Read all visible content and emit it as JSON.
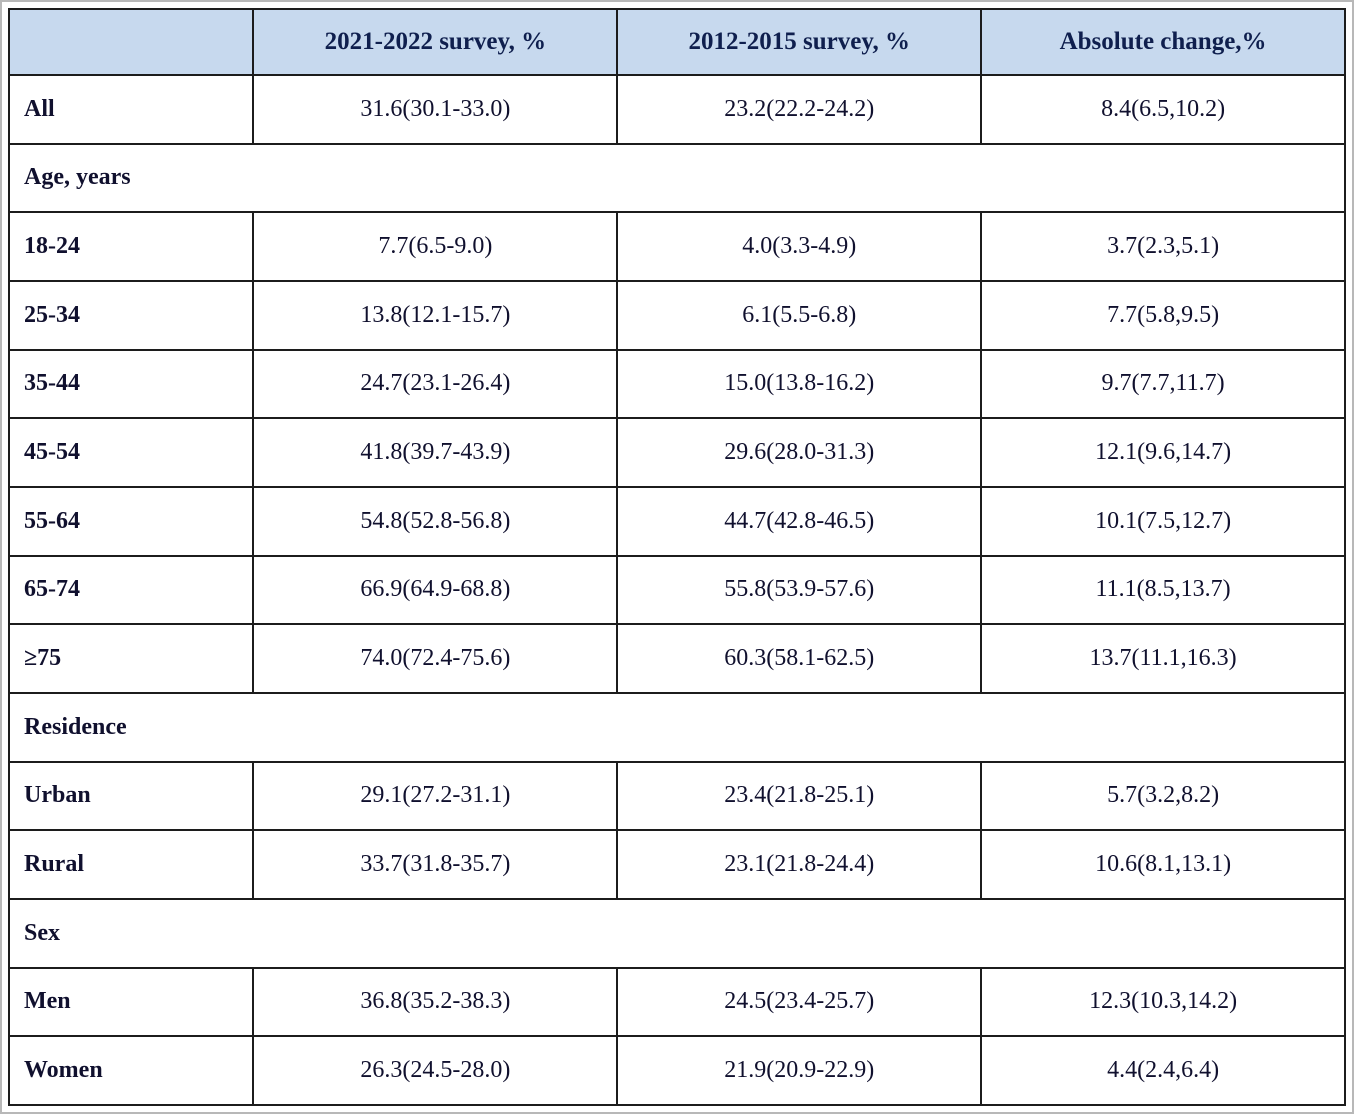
{
  "table": {
    "columns": [
      "",
      "2021-2022 survey, %",
      "2012-2015 survey, %",
      "Absolute change,%"
    ],
    "rows": [
      {
        "type": "data",
        "label": "All",
        "values": [
          "31.6(30.1-33.0)",
          "23.2(22.2-24.2)",
          "8.4(6.5,10.2)"
        ]
      },
      {
        "type": "section",
        "label": "Age, years"
      },
      {
        "type": "data",
        "label": "18-24",
        "values": [
          "7.7(6.5-9.0)",
          "4.0(3.3-4.9)",
          "3.7(2.3,5.1)"
        ]
      },
      {
        "type": "data",
        "label": "25-34",
        "values": [
          "13.8(12.1-15.7)",
          "6.1(5.5-6.8)",
          "7.7(5.8,9.5)"
        ]
      },
      {
        "type": "data",
        "label": "35-44",
        "values": [
          "24.7(23.1-26.4)",
          "15.0(13.8-16.2)",
          "9.7(7.7,11.7)"
        ]
      },
      {
        "type": "data",
        "label": "45-54",
        "values": [
          "41.8(39.7-43.9)",
          "29.6(28.0-31.3)",
          "12.1(9.6,14.7)"
        ]
      },
      {
        "type": "data",
        "label": "55-64",
        "values": [
          "54.8(52.8-56.8)",
          "44.7(42.8-46.5)",
          "10.1(7.5,12.7)"
        ]
      },
      {
        "type": "data",
        "label": "65-74",
        "values": [
          "66.9(64.9-68.8)",
          "55.8(53.9-57.6)",
          "11.1(8.5,13.7)"
        ]
      },
      {
        "type": "data",
        "label": "≥75",
        "values": [
          "74.0(72.4-75.6)",
          "60.3(58.1-62.5)",
          "13.7(11.1,16.3)"
        ]
      },
      {
        "type": "section",
        "label": "Residence"
      },
      {
        "type": "data",
        "label": "Urban",
        "values": [
          "29.1(27.2-31.1)",
          "23.4(21.8-25.1)",
          "5.7(3.2,8.2)"
        ]
      },
      {
        "type": "data",
        "label": "Rural",
        "values": [
          "33.7(31.8-35.7)",
          "23.1(21.8-24.4)",
          "10.6(8.1,13.1)"
        ]
      },
      {
        "type": "section",
        "label": "Sex"
      },
      {
        "type": "data",
        "label": "Men",
        "values": [
          "36.8(35.2-38.3)",
          "24.5(23.4-25.7)",
          "12.3(10.3,14.2)"
        ]
      },
      {
        "type": "data",
        "label": "Women",
        "values": [
          "26.3(24.5-28.0)",
          "21.9(20.9-22.9)",
          "4.4(2.4,6.4)"
        ]
      }
    ],
    "colors": {
      "header_bg": "#c7d9ee",
      "header_text": "#0f1f4e",
      "body_text": "#10102e",
      "border": "#1c1c1c"
    }
  }
}
